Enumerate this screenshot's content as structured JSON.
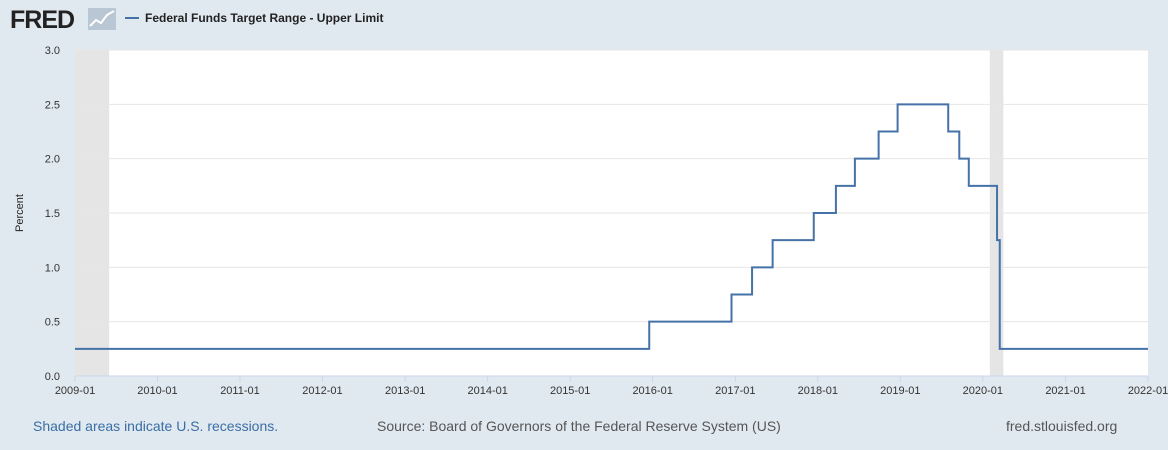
{
  "header": {
    "logo_text": "FRED",
    "logo_icon": "line-chart-icon"
  },
  "chart_data": {
    "type": "line",
    "step": true,
    "title": "",
    "series": [
      {
        "name": "Federal Funds Target Range - Upper Limit",
        "color": "#4572a7",
        "points": [
          [
            "2009-01-01",
            0.25
          ],
          [
            "2015-12-17",
            0.5
          ],
          [
            "2016-12-15",
            0.75
          ],
          [
            "2017-03-16",
            1.0
          ],
          [
            "2017-06-15",
            1.25
          ],
          [
            "2017-12-14",
            1.5
          ],
          [
            "2018-03-22",
            1.75
          ],
          [
            "2018-06-14",
            2.0
          ],
          [
            "2018-09-27",
            2.25
          ],
          [
            "2018-12-20",
            2.5
          ],
          [
            "2019-08-01",
            2.25
          ],
          [
            "2019-09-19",
            2.0
          ],
          [
            "2019-10-31",
            1.75
          ],
          [
            "2020-03-04",
            1.25
          ],
          [
            "2020-03-16",
            0.25
          ],
          [
            "2022-01-01",
            0.25
          ]
        ]
      }
    ],
    "xlim": [
      "2009-01-01",
      "2022-01-01"
    ],
    "ylim": [
      0,
      3.0
    ],
    "y_ticks": [
      "0.0",
      "0.5",
      "1.0",
      "1.5",
      "2.0",
      "2.5",
      "3.0"
    ],
    "x_ticks": [
      "2009-01",
      "2010-01",
      "2011-01",
      "2012-01",
      "2013-01",
      "2014-01",
      "2015-01",
      "2016-01",
      "2017-01",
      "2018-01",
      "2019-01",
      "2020-01",
      "2021-01",
      "2022-01"
    ],
    "ylabel": "Percent",
    "xlabel": "",
    "grid": "horizontal",
    "legend_position": "top-left",
    "recessions": [
      [
        "2009-01-01",
        "2009-06-01"
      ],
      [
        "2020-02-01",
        "2020-04-01"
      ]
    ],
    "recession_color": "#e5e5e5"
  },
  "footer": {
    "note": "Shaded areas indicate U.S. recessions.",
    "source": "Source: Board of Governors of the Federal Reserve System (US)",
    "site": "fred.stlouisfed.org"
  }
}
